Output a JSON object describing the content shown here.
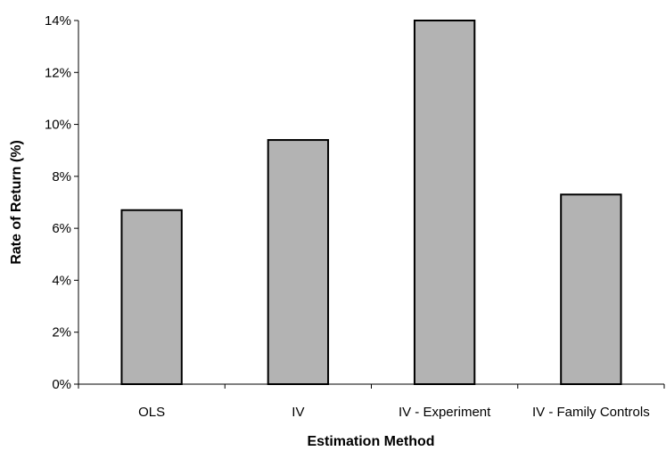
{
  "chart_data": {
    "type": "bar",
    "title": "",
    "xlabel": "Estimation Method",
    "ylabel": "Rate of Return (%)",
    "categories": [
      "OLS",
      "IV",
      "IV - Experiment",
      "IV - Family Controls"
    ],
    "values": [
      6.7,
      9.4,
      14.0,
      7.3
    ],
    "value_unit": "%",
    "ylim": [
      0,
      14
    ],
    "yticks": [
      0,
      2,
      4,
      6,
      8,
      10,
      12,
      14
    ],
    "ytick_labels": [
      "0%",
      "2%",
      "4%",
      "6%",
      "8%",
      "10%",
      "12%",
      "14%"
    ],
    "bar_color": "#b3b3b3",
    "bar_edge_color": "#000000",
    "grid": false,
    "legend": "none"
  }
}
